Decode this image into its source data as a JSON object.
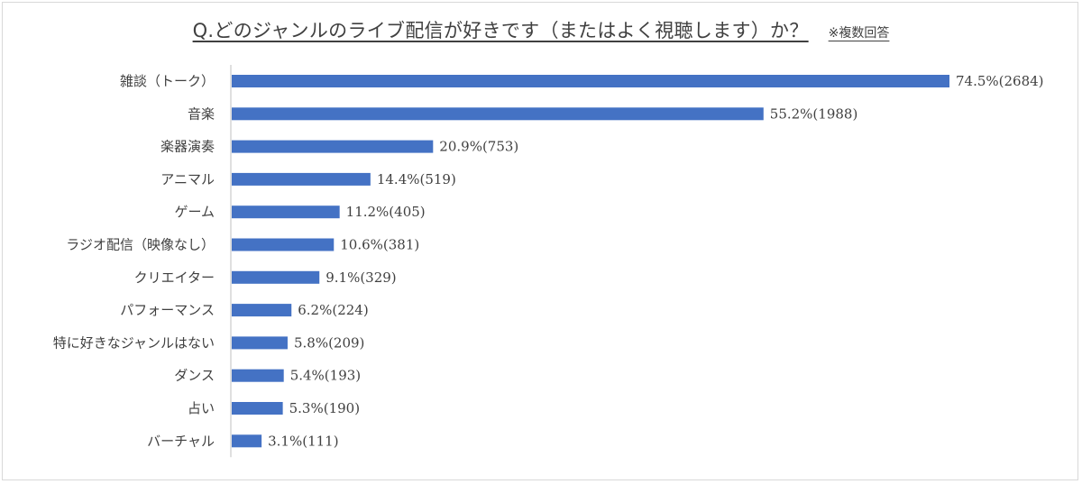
{
  "title": "Q.どのジャンルのライブ配信が好きです（またはよく視聴します）か？",
  "note": "※複数回答",
  "colors": {
    "bar": "#4472c4",
    "text": "#404040",
    "axis": "#bfbfbf"
  },
  "chart_data": {
    "type": "bar",
    "orientation": "horizontal",
    "categories": [
      "雑談（トーク）",
      "音楽",
      "楽器演奏",
      "アニマル",
      "ゲーム",
      "ラジオ配信（映像なし）",
      "クリエイター",
      "パフォーマンス",
      "特に好きなジャンルはない",
      "ダンス",
      "占い",
      "バーチャル"
    ],
    "values": [
      74.5,
      55.2,
      20.9,
      14.4,
      11.2,
      10.6,
      9.1,
      6.2,
      5.8,
      5.4,
      5.3,
      3.1
    ],
    "counts": [
      2684,
      1988,
      753,
      519,
      405,
      381,
      329,
      224,
      209,
      193,
      190,
      111
    ],
    "data_labels": [
      "74.5%(2684)",
      "55.2%(1988)",
      "20.9%(753)",
      "14.4%(519)",
      "11.2%(405)",
      "10.6%(381)",
      "9.1%(329)",
      "6.2%(224)",
      "5.8%(209)",
      "5.4%(193)",
      "5.3%(190)",
      "3.1%(111)"
    ],
    "xlim": [
      0,
      74.5
    ],
    "grid": false,
    "legend": "none"
  }
}
